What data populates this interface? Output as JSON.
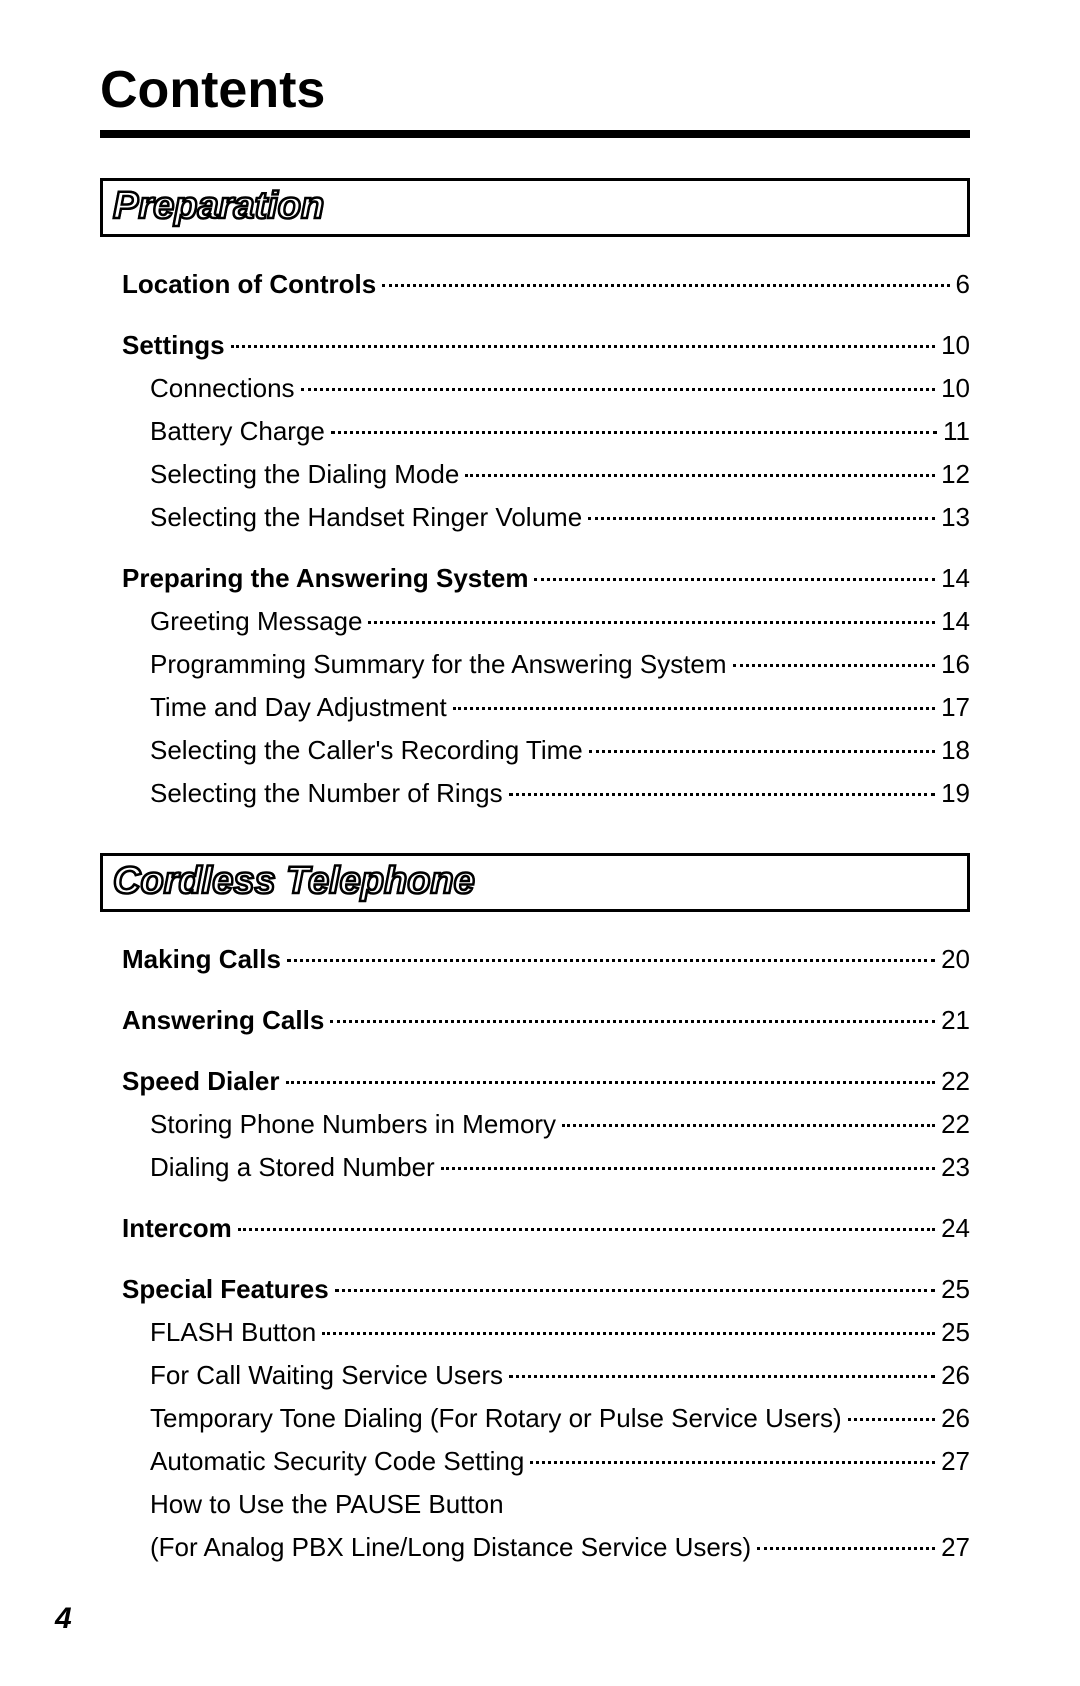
{
  "title": "Contents",
  "page_number": "4",
  "sections": [
    {
      "header": "Preparation",
      "groups": [
        {
          "items": [
            {
              "label": "Location of Controls",
              "page": "6",
              "bold": true,
              "indent": 0
            }
          ]
        },
        {
          "items": [
            {
              "label": "Settings",
              "page": "10",
              "bold": true,
              "indent": 0
            },
            {
              "label": "Connections",
              "page": "10",
              "bold": false,
              "indent": 1
            },
            {
              "label": "Battery Charge",
              "page": "11",
              "bold": false,
              "indent": 1
            },
            {
              "label": "Selecting the Dialing Mode",
              "page": "12",
              "bold": false,
              "indent": 1
            },
            {
              "label": "Selecting the Handset Ringer Volume",
              "page": "13",
              "bold": false,
              "indent": 1
            }
          ]
        },
        {
          "items": [
            {
              "label": "Preparing the Answering System",
              "page": "14",
              "bold": true,
              "indent": 0
            },
            {
              "label": "Greeting Message",
              "page": "14",
              "bold": false,
              "indent": 1
            },
            {
              "label": "Programming Summary for the Answering System",
              "page": "16",
              "bold": false,
              "indent": 1
            },
            {
              "label": "Time and Day Adjustment",
              "page": "17",
              "bold": false,
              "indent": 1
            },
            {
              "label": "Selecting the Caller's Recording Time",
              "page": "18",
              "bold": false,
              "indent": 1
            },
            {
              "label": "Selecting the Number of Rings",
              "page": "19",
              "bold": false,
              "indent": 1
            }
          ]
        }
      ]
    },
    {
      "header": "Cordless Telephone",
      "groups": [
        {
          "items": [
            {
              "label": "Making Calls",
              "page": "20",
              "bold": true,
              "indent": 0
            }
          ]
        },
        {
          "items": [
            {
              "label": "Answering Calls",
              "page": "21",
              "bold": true,
              "indent": 0
            }
          ]
        },
        {
          "items": [
            {
              "label": "Speed Dialer",
              "page": "22",
              "bold": true,
              "indent": 0
            },
            {
              "label": "Storing Phone Numbers in Memory",
              "page": "22",
              "bold": false,
              "indent": 1
            },
            {
              "label": "Dialing a Stored Number",
              "page": "23",
              "bold": false,
              "indent": 1
            }
          ]
        },
        {
          "items": [
            {
              "label": "Intercom",
              "page": "24",
              "bold": true,
              "indent": 0
            }
          ]
        },
        {
          "items": [
            {
              "label": "Special Features",
              "page": "25",
              "bold": true,
              "indent": 0
            },
            {
              "label": "FLASH Button",
              "page": "25",
              "bold": false,
              "indent": 1
            },
            {
              "label": "For Call Waiting Service Users",
              "page": "26",
              "bold": false,
              "indent": 1
            },
            {
              "label": "Temporary Tone Dialing (For Rotary or Pulse Service Users)",
              "page": "26",
              "bold": false,
              "indent": 1
            },
            {
              "label": "Automatic Security Code Setting",
              "page": "27",
              "bold": false,
              "indent": 1
            },
            {
              "label": "How to Use the PAUSE Button",
              "page": "",
              "bold": false,
              "indent": 1,
              "noleader": true
            },
            {
              "label": "(For Analog PBX Line/Long Distance Service Users)",
              "page": "27",
              "bold": false,
              "indent": 1
            }
          ]
        }
      ]
    }
  ]
}
